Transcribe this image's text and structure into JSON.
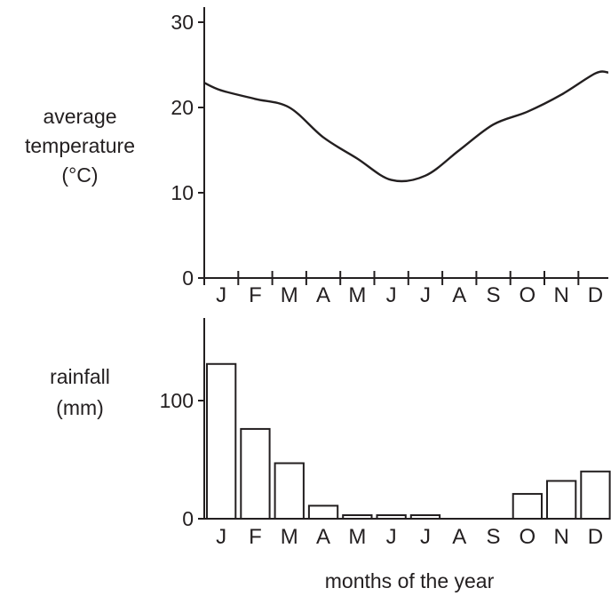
{
  "chart_data": [
    {
      "type": "line",
      "ylabel": [
        "average",
        "temperature",
        "(°C)"
      ],
      "ylim": [
        0,
        30
      ],
      "yticks": [
        "0",
        "10",
        "20",
        "30"
      ],
      "categories": [
        "J",
        "F",
        "M",
        "A",
        "M",
        "J",
        "J",
        "A",
        "S",
        "O",
        "N",
        "D"
      ],
      "series": [
        {
          "values": [
            22,
            21,
            20,
            16.5,
            14,
            11.5,
            12,
            15,
            18,
            19.5,
            21.5,
            24
          ]
        }
      ]
    },
    {
      "type": "bar",
      "ylabel": [
        "rainfall",
        "(mm)"
      ],
      "ylim": [
        0,
        160
      ],
      "yticks": [
        "0",
        "100"
      ],
      "categories": [
        "J",
        "F",
        "M",
        "A",
        "M",
        "J",
        "J",
        "A",
        "S",
        "O",
        "N",
        "D"
      ],
      "values": [
        131,
        76,
        47,
        11,
        3,
        3,
        3,
        0,
        0,
        21,
        32,
        40
      ],
      "xlabel": "months of the year"
    }
  ]
}
